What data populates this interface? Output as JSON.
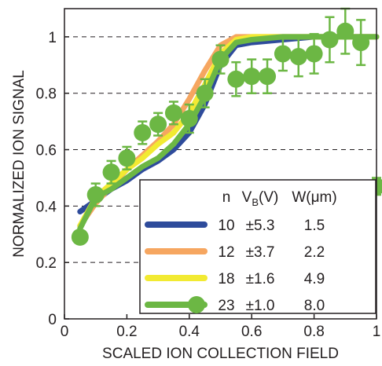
{
  "chart_data": {
    "type": "line",
    "xlabel": "SCALED ION COLLECTION FIELD",
    "ylabel": "NORMALIZED ION SIGNAL",
    "xlim": [
      0,
      1
    ],
    "ylim": [
      0,
      1.1
    ],
    "x_ticks": [
      "0",
      "0.2",
      "0.4",
      "0.6",
      "0.8",
      "1"
    ],
    "y_ticks": [
      "0",
      "0.2",
      "0.4",
      "0.6",
      "0.8",
      "1"
    ],
    "grid": "horizontal dashed",
    "legend": {
      "placement": "bottom-right",
      "headers": {
        "n": "n",
        "vb_main": "V",
        "vb_sub": "B",
        "vb_unit": "(V)",
        "w": "W(μm)"
      }
    },
    "series": [
      {
        "n": "10",
        "vb": "±5.3",
        "w": "1.5",
        "color": "#2e4b9b",
        "x": [
          0.05,
          0.1,
          0.15,
          0.2,
          0.25,
          0.3,
          0.35,
          0.4,
          0.45,
          0.5,
          0.55,
          0.6,
          0.7,
          0.8,
          1.0
        ],
        "y": [
          0.38,
          0.42,
          0.46,
          0.49,
          0.53,
          0.56,
          0.6,
          0.66,
          0.76,
          0.9,
          0.97,
          0.98,
          0.99,
          1.0,
          1.0
        ]
      },
      {
        "n": "12",
        "vb": "±3.7",
        "w": "2.2",
        "color": "#f6a660",
        "x": [
          0.05,
          0.1,
          0.15,
          0.2,
          0.25,
          0.3,
          0.35,
          0.4,
          0.45,
          0.5,
          0.55,
          0.6,
          0.7,
          1.0
        ],
        "y": [
          0.33,
          0.41,
          0.47,
          0.53,
          0.58,
          0.63,
          0.69,
          0.78,
          0.88,
          0.97,
          1.0,
          1.0,
          1.0,
          1.0
        ]
      },
      {
        "n": "18",
        "vb": "±1.6",
        "w": "4.9",
        "color": "#f2ea32",
        "x": [
          0.05,
          0.1,
          0.15,
          0.2,
          0.25,
          0.3,
          0.35,
          0.4,
          0.45,
          0.5,
          0.55,
          0.6,
          1.0
        ],
        "y": [
          0.33,
          0.43,
          0.48,
          0.53,
          0.57,
          0.62,
          0.66,
          0.73,
          0.83,
          0.94,
          0.99,
          1.0,
          1.0
        ]
      },
      {
        "n": "23",
        "vb": "±1.0",
        "w": "8.0",
        "color": "#6cb744",
        "x": [
          0.05,
          0.1,
          0.15,
          0.2,
          0.25,
          0.3,
          0.35,
          0.4,
          0.45,
          0.5,
          0.55,
          0.6,
          0.7,
          0.8,
          1.0
        ],
        "y": [
          0.32,
          0.43,
          0.46,
          0.5,
          0.54,
          0.57,
          0.62,
          0.69,
          0.79,
          0.92,
          0.98,
          0.99,
          1.0,
          1.0,
          1.0
        ]
      }
    ],
    "measurements": {
      "color": "#6cb744",
      "points": [
        {
          "x": 0.05,
          "y": 0.29,
          "err": 0.0
        },
        {
          "x": 0.1,
          "y": 0.44,
          "err": 0.04
        },
        {
          "x": 0.15,
          "y": 0.52,
          "err": 0.04
        },
        {
          "x": 0.2,
          "y": 0.57,
          "err": 0.04
        },
        {
          "x": 0.25,
          "y": 0.66,
          "err": 0.04
        },
        {
          "x": 0.3,
          "y": 0.69,
          "err": 0.04
        },
        {
          "x": 0.35,
          "y": 0.73,
          "err": 0.04
        },
        {
          "x": 0.4,
          "y": 0.71,
          "err": 0.05
        },
        {
          "x": 0.45,
          "y": 0.8,
          "err": 0.05
        },
        {
          "x": 0.5,
          "y": 0.92,
          "err": 0.05
        },
        {
          "x": 0.55,
          "y": 0.85,
          "err": 0.06
        },
        {
          "x": 0.6,
          "y": 0.86,
          "err": 0.06
        },
        {
          "x": 0.65,
          "y": 0.86,
          "err": 0.06
        },
        {
          "x": 0.7,
          "y": 0.94,
          "err": 0.06
        },
        {
          "x": 0.75,
          "y": 0.93,
          "err": 0.07
        },
        {
          "x": 0.8,
          "y": 0.94,
          "err": 0.07
        },
        {
          "x": 0.85,
          "y": 0.99,
          "err": 0.08
        },
        {
          "x": 0.9,
          "y": 1.02,
          "err": 0.08
        },
        {
          "x": 0.95,
          "y": 0.98,
          "err": 0.08
        },
        {
          "x": 1.0,
          "y": 0.47,
          "err": 0.03
        }
      ]
    }
  }
}
